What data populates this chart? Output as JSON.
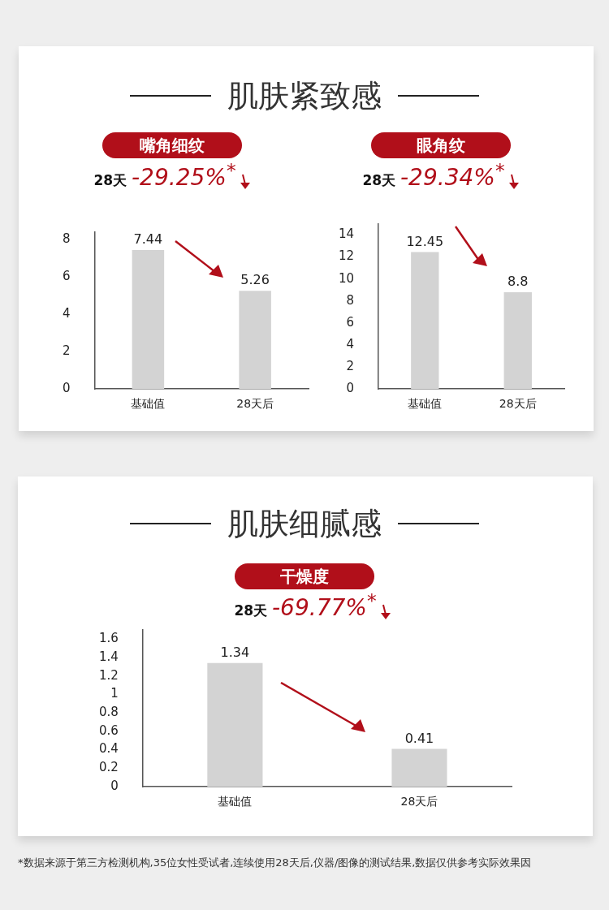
{
  "chart_data": [
    {
      "type": "bar",
      "title": "嘴角细纹",
      "subtitle": "28天 -29.25%$^{*}$",
      "annotations": [
        "肌肤紧致感"
      ],
      "categories": [
        "基础值",
        "28天后"
      ],
      "values": [
        7.44,
        5.26
      ],
      "color": "#d3d3d3",
      "ylim": [
        0,
        8.4
      ],
      "yticks": [
        0,
        2,
        4,
        6,
        8
      ],
      "data_labels": true
    },
    {
      "type": "bar",
      "title": "眼角纹",
      "subtitle": "28天 -29.34%$^{*}$",
      "categories": [
        "基础值",
        "28天后"
      ],
      "values": [
        12.45,
        8.8
      ],
      "color": "#d3d3d3",
      "ylim": [
        0,
        15
      ],
      "yticks": [
        0,
        2,
        4,
        6,
        8,
        10,
        12,
        14
      ],
      "data_labels": true
    },
    {
      "type": "bar",
      "title": "干燥度",
      "subtitle": "28天 -69.77%$^{*}$",
      "annotations": [
        "肌肤细腻感",
        "*数据来源于第三方检测机构,35位女性受试者,连续使用28天后,仪器/图像的测试结果,数据仅供参考实际效果因"
      ],
      "categories": [
        "基础值",
        "28天后"
      ],
      "values": [
        1.34,
        0.41
      ],
      "color": "#d3d3d3",
      "ylim": [
        0,
        1.7
      ],
      "yticks": [
        0,
        0.2,
        0.4,
        0.6,
        0.8,
        1,
        1.2,
        1.4,
        1.6
      ],
      "data_labels": true
    }
  ]
}
